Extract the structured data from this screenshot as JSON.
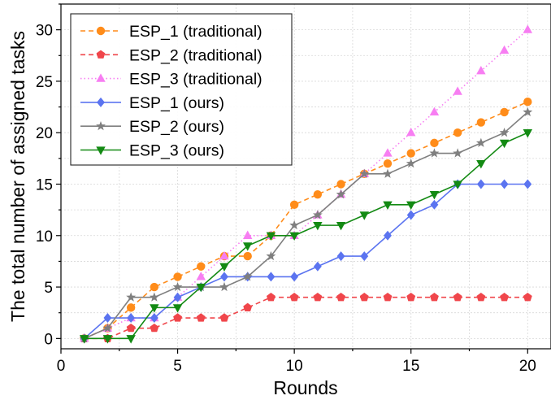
{
  "chart_data": {
    "type": "line",
    "xlabel": "Rounds",
    "ylabel": "The total number of assigned tasks",
    "xlim": [
      0,
      21
    ],
    "ylim": [
      -1,
      32.5
    ],
    "xticks": [
      0,
      5,
      10,
      15,
      20
    ],
    "yticks": [
      0,
      5,
      10,
      15,
      20,
      25,
      30
    ],
    "xtick_labels": [
      "0",
      "5",
      "10",
      "15",
      "20"
    ],
    "ytick_labels": [
      "0",
      "5",
      "10",
      "15",
      "20",
      "25",
      "30"
    ],
    "grid": true,
    "legend_position": "top-left",
    "x": [
      1,
      2,
      3,
      4,
      5,
      6,
      7,
      8,
      9,
      10,
      11,
      12,
      13,
      14,
      15,
      16,
      17,
      18,
      19,
      20
    ],
    "series": [
      {
        "name": "ESP_1 (traditional)",
        "color": "#ff8c1a",
        "marker": "circle",
        "dash": "6 4",
        "values": [
          0,
          1,
          3,
          5,
          6,
          7,
          8,
          8,
          10,
          13,
          14,
          15,
          16,
          17,
          18,
          19,
          20,
          21,
          22,
          23
        ]
      },
      {
        "name": "ESP_2 (traditional)",
        "color": "#f0464b",
        "marker": "pentagon",
        "dash": "6 4",
        "values": [
          0,
          0,
          1,
          1,
          2,
          2,
          2,
          3,
          4,
          4,
          4,
          4,
          4,
          4,
          4,
          4,
          4,
          4,
          4,
          4
        ]
      },
      {
        "name": "ESP_3 (traditional)",
        "color": "#f77ef2",
        "marker": "triangle-up",
        "dash": "1.5 3",
        "values": [
          0,
          1,
          2,
          2,
          4,
          6,
          8,
          10,
          10,
          10,
          12,
          14,
          16,
          18,
          20,
          22,
          24,
          26,
          28,
          30
        ]
      },
      {
        "name": "ESP_1 (ours)",
        "color": "#5b74f0",
        "marker": "diamond",
        "dash": "",
        "values": [
          0,
          2,
          2,
          2,
          4,
          5,
          6,
          6,
          6,
          6,
          7,
          8,
          8,
          10,
          12,
          13,
          15,
          15,
          15,
          15
        ]
      },
      {
        "name": "ESP_2 (ours)",
        "color": "#7f7f7f",
        "marker": "star",
        "dash": "",
        "values": [
          0,
          1,
          4,
          4,
          5,
          5,
          5,
          6,
          8,
          11,
          12,
          14,
          16,
          16,
          17,
          18,
          18,
          19,
          20,
          22
        ]
      },
      {
        "name": "ESP_3 (ours)",
        "color": "#138a13",
        "marker": "triangle-down",
        "dash": "",
        "values": [
          0,
          0,
          0,
          3,
          3,
          5,
          7,
          9,
          10,
          10,
          11,
          11,
          12,
          13,
          13,
          14,
          15,
          17,
          19,
          20
        ]
      }
    ]
  }
}
